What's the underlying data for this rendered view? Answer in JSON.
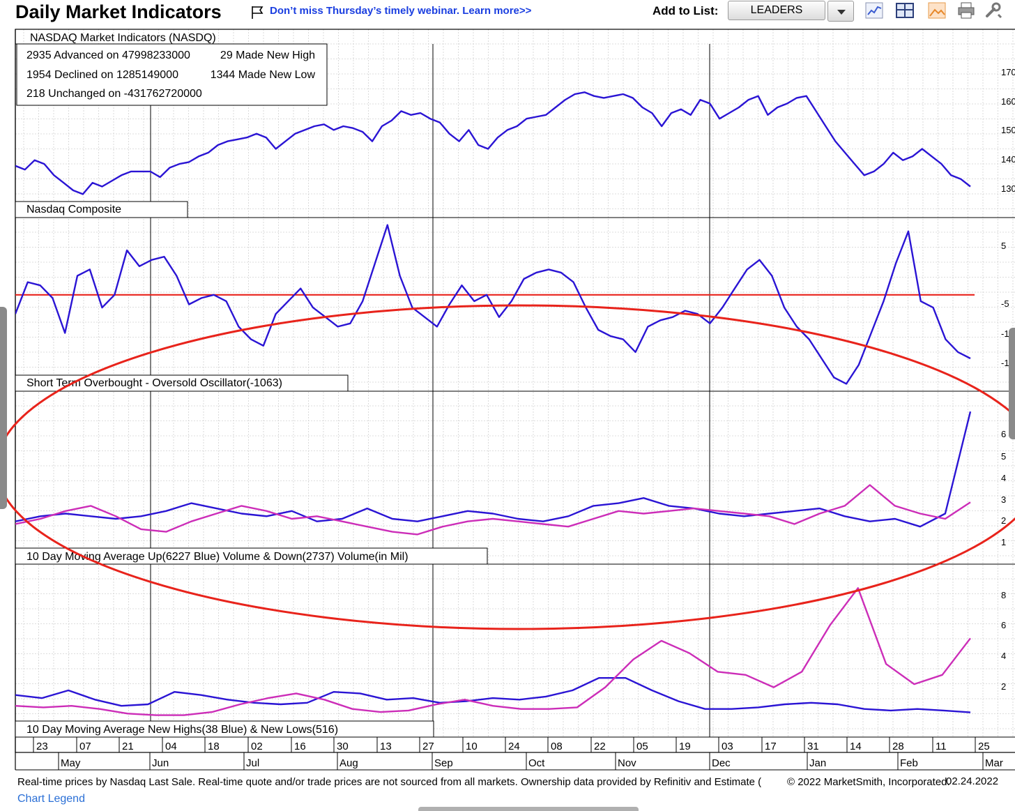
{
  "header": {
    "title": "Daily Market Indicators",
    "promo_link": "Don’t miss Thursday’s timely webinar. Learn more>>",
    "add_to_list_label": "Add to List:",
    "list_value": "LEADERS",
    "tool_icons": [
      "line-chart-icon",
      "layout-icon",
      "image-icon",
      "print-icon",
      "settings-icon"
    ]
  },
  "stats_box": {
    "title": "NASDAQ Market Indicators (NASDQ)",
    "advanced": "2935 Advanced on 47998233000",
    "declined": "1954 Declined on 1285149000",
    "unchanged": "218 Unchanged on -431762720000",
    "new_high": "29 Made New High",
    "new_low": "1344 Made New Low"
  },
  "panel_labels": {
    "composite": "Nasdaq Composite",
    "oscillator": "Short Term Overbought - Oversold Oscillator(-1063)",
    "volume": "10 Day Moving Average Up(6227 Blue) Volume & Down(2737) Volume(in Mil)",
    "highs_lows": "10 Day Moving Average New Highs(38 Blue) & New Lows(516)"
  },
  "x_axis": {
    "day_ticks": [
      "23",
      "07",
      "21",
      "04",
      "18",
      "02",
      "16",
      "30",
      "13",
      "27",
      "10",
      "24",
      "08",
      "22",
      "05",
      "19",
      "03",
      "17",
      "31",
      "14",
      "28",
      "11",
      "25"
    ],
    "month_ticks": [
      "May",
      "Jun",
      "Jul",
      "Aug",
      "Sep",
      "Oct",
      "Nov",
      "Dec",
      "Jan",
      "Feb",
      "Mar"
    ]
  },
  "y_axis_labels": {
    "composite": [
      "170",
      "160",
      "150",
      "140",
      "130"
    ],
    "oscillator": [
      "5",
      "-5",
      "-1",
      "-1"
    ],
    "volume": [
      "6",
      "5",
      "4",
      "3",
      "2",
      "1"
    ],
    "highs_lows": [
      "8",
      "6",
      "4",
      "2"
    ]
  },
  "colors": {
    "blue_series": "#2a14d4",
    "magenta_series": "#cc2db8",
    "red_line": "#e8231b",
    "annotation_ellipse": "#e8231b",
    "link": "#1a3ee0"
  },
  "chart_data": [
    {
      "type": "line",
      "panel": "composite",
      "ylim": [
        12800,
        17200
      ],
      "series": [
        {
          "values": [
            13950,
            13850,
            14100,
            14000,
            13700,
            13500,
            13300,
            13200,
            13500,
            13400,
            13550,
            13700,
            13800,
            13800,
            13800,
            13650,
            13900,
            14000,
            14050,
            14200,
            14300,
            14500,
            14600,
            14650,
            14700,
            14800,
            14700,
            14400,
            14600,
            14800,
            14900,
            15000,
            15050,
            14900,
            15000,
            14950,
            14850,
            14600,
            15000,
            15150,
            15400,
            15300,
            15350,
            15200,
            15100,
            14800,
            14600,
            14900,
            14500,
            14400,
            14700,
            14900,
            15000,
            15200,
            15250,
            15300,
            15500,
            15700,
            15850,
            15900,
            15800,
            15750,
            15800,
            15850,
            15750,
            15500,
            15350,
            15000,
            15350,
            15450,
            15300,
            15700,
            15600,
            15200,
            15350,
            15500,
            15700,
            15800,
            15300,
            15500,
            15600,
            15750,
            15800,
            15400,
            15000,
            14600,
            14300,
            14000,
            13700,
            13800,
            14000,
            14300,
            14100,
            14200,
            14400,
            14200,
            14000,
            13700,
            13600,
            13400
          ]
        }
      ]
    },
    {
      "type": "line",
      "panel": "oscillator",
      "reference_line": 0,
      "series": [
        {
          "values": [
            -300,
            200,
            150,
            -50,
            -600,
            300,
            400,
            -200,
            0,
            700,
            450,
            550,
            600,
            300,
            -150,
            -50,
            0,
            -100,
            -500,
            -700,
            -800,
            -300,
            -100,
            100,
            -200,
            -350,
            -500,
            -450,
            -100,
            500,
            1100,
            300,
            -200,
            -350,
            -500,
            -150,
            150,
            -100,
            0,
            -350,
            -100,
            250,
            350,
            400,
            350,
            200,
            -200,
            -550,
            -650,
            -700,
            -900,
            -500,
            -400,
            -350,
            -250,
            -300,
            -450,
            -200,
            100,
            400,
            550,
            300,
            -200,
            -500,
            -700,
            -1000,
            -1300,
            -1400,
            -1100,
            -600,
            -100,
            500,
            1000,
            -100,
            -200,
            -700,
            -900,
            -1000
          ]
        }
      ]
    },
    {
      "type": "line",
      "panel": "volume_10day_ma",
      "series": [
        {
          "values": [
            2000,
            2200,
            2300,
            2200,
            2100,
            2200,
            2400,
            2700,
            2500,
            2300,
            2200,
            2400,
            2000,
            2100,
            2500,
            2100,
            2000,
            2200,
            2400,
            2300,
            2100,
            2000,
            2200,
            2600,
            2700,
            2900,
            2600,
            2500,
            2300,
            2200,
            2300,
            2400,
            2500,
            2200,
            2000,
            2100,
            1800,
            2300,
            6227
          ]
        },
        {
          "values": [
            1900,
            2100,
            2400,
            2600,
            2200,
            1700,
            1600,
            2000,
            2300,
            2600,
            2400,
            2100,
            2200,
            2000,
            1800,
            1600,
            1500,
            1800,
            2000,
            2100,
            2000,
            1900,
            1800,
            2100,
            2400,
            2300,
            2400,
            2500,
            2400,
            2300,
            2200,
            1900,
            2300,
            2600,
            3400,
            2600,
            2300,
            2100,
            2737
          ]
        }
      ]
    },
    {
      "type": "line",
      "panel": "new_highs_lows_10day_ma",
      "series": [
        {
          "values": [
            150,
            130,
            180,
            120,
            80,
            90,
            170,
            150,
            120,
            100,
            90,
            100,
            170,
            160,
            120,
            130,
            100,
            110,
            130,
            120,
            140,
            180,
            260,
            260,
            180,
            110,
            60,
            60,
            70,
            90,
            100,
            90,
            60,
            50,
            60,
            50,
            38
          ]
        },
        {
          "values": [
            80,
            70,
            80,
            60,
            30,
            20,
            20,
            40,
            90,
            130,
            160,
            120,
            60,
            40,
            50,
            90,
            120,
            80,
            60,
            60,
            70,
            200,
            380,
            500,
            420,
            300,
            280,
            200,
            300,
            600,
            840,
            350,
            220,
            280,
            516
          ]
        }
      ]
    }
  ],
  "footer": {
    "disclaimer": "Real-time prices by Nasdaq Last Sale. Real-time quote and/or trade prices are not sourced from all markets. Ownership data provided by Refinitiv and Estimate (",
    "copyright": "© 2022 MarketSmith, Incorporated.",
    "date": "02.24.2022",
    "legend_link": "Chart Legend"
  }
}
